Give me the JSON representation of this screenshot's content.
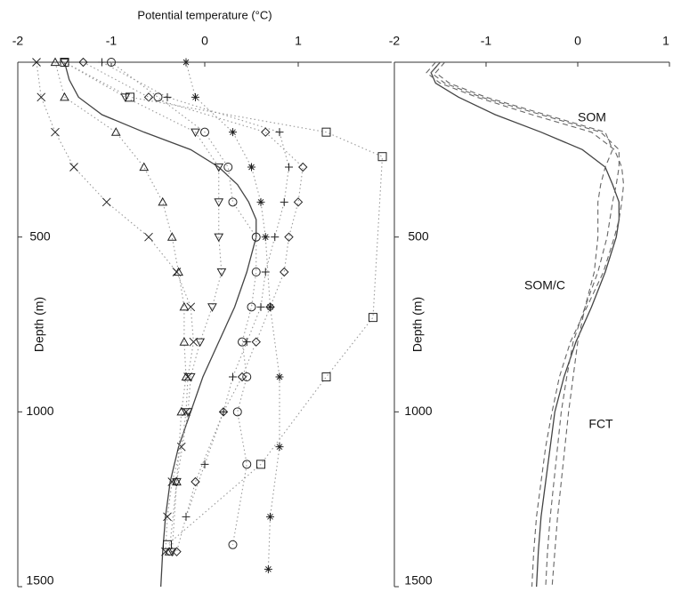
{
  "chart_data": [
    {
      "type": "line",
      "title": "Potential temperature (°C)",
      "ylabel": "Depth (m)",
      "xlim": [
        -2,
        2
      ],
      "xticks": [
        -2,
        -1,
        0,
        1
      ],
      "ylim": [
        0,
        1500
      ],
      "yticks": [
        500,
        1000,
        1500
      ],
      "y_inverted": true,
      "series": [
        {
          "color": "#444444",
          "line_style": "solid",
          "marker": "none",
          "depth": [
            0,
            50,
            100,
            150,
            200,
            250,
            300,
            350,
            400,
            450,
            500,
            600,
            700,
            800,
            900,
            1000,
            1100,
            1200,
            1300,
            1400,
            1500
          ],
          "values": [
            -1.5,
            -1.45,
            -1.35,
            -1.1,
            -0.65,
            -0.15,
            0.15,
            0.35,
            0.47,
            0.55,
            0.55,
            0.45,
            0.32,
            0.15,
            -0.02,
            -0.15,
            -0.28,
            -0.37,
            -0.42,
            -0.45,
            -0.47
          ]
        },
        {
          "color": "#999999",
          "line_style": "dotted",
          "marker": "x",
          "depth": [
            0,
            100,
            200,
            300,
            400,
            500,
            600,
            700,
            800,
            900,
            1000,
            1100,
            1200,
            1300,
            1400
          ],
          "values": [
            -1.8,
            -1.75,
            -1.6,
            -1.4,
            -1.05,
            -0.6,
            -0.3,
            -0.15,
            -0.12,
            -0.18,
            -0.2,
            -0.25,
            -0.35,
            -0.4,
            -0.42
          ]
        },
        {
          "color": "#999999",
          "line_style": "dotted",
          "marker": "triangle",
          "depth": [
            0,
            100,
            200,
            300,
            400,
            500,
            600,
            700,
            800,
            900,
            1000,
            1200,
            1400
          ],
          "values": [
            -1.6,
            -1.5,
            -0.95,
            -0.65,
            -0.45,
            -0.35,
            -0.28,
            -0.22,
            -0.22,
            -0.2,
            -0.25,
            -0.3,
            -0.38
          ]
        },
        {
          "color": "#999999",
          "line_style": "dotted",
          "marker": "itriangle",
          "depth": [
            0,
            100,
            200,
            300,
            400,
            500,
            600,
            700,
            800,
            900,
            1000,
            1200,
            1400
          ],
          "values": [
            -1.5,
            -0.85,
            -0.1,
            0.15,
            0.15,
            0.15,
            0.18,
            0.08,
            -0.05,
            -0.15,
            -0.18,
            -0.3,
            -0.35
          ]
        },
        {
          "color": "#999999",
          "line_style": "dotted",
          "marker": "circle",
          "depth": [
            0,
            100,
            200,
            300,
            400,
            500,
            600,
            700,
            800,
            900,
            1000,
            1150,
            1380
          ],
          "values": [
            -1.0,
            -0.5,
            0.0,
            0.25,
            0.3,
            0.55,
            0.55,
            0.5,
            0.4,
            0.45,
            0.35,
            0.45,
            0.3
          ]
        },
        {
          "color": "#999999",
          "line_style": "dotted",
          "marker": "plus",
          "depth": [
            0,
            100,
            200,
            300,
            400,
            500,
            600,
            700,
            800,
            900,
            1000,
            1150,
            1300
          ],
          "values": [
            -1.1,
            -0.4,
            0.8,
            0.9,
            0.85,
            0.75,
            0.65,
            0.6,
            0.45,
            0.3,
            0.2,
            0.0,
            -0.2
          ]
        },
        {
          "color": "#999999",
          "line_style": "dotted",
          "marker": "diamond",
          "depth": [
            0,
            100,
            200,
            300,
            400,
            500,
            600,
            700,
            800,
            900,
            1000,
            1200,
            1400
          ],
          "values": [
            -1.3,
            -0.6,
            0.65,
            1.05,
            1.0,
            0.9,
            0.85,
            0.7,
            0.55,
            0.4,
            0.2,
            -0.1,
            -0.3
          ]
        },
        {
          "color": "#999999",
          "line_style": "dotted",
          "marker": "square",
          "depth": [
            0,
            100,
            200,
            270,
            730,
            900,
            1150,
            1380
          ],
          "values": [
            -1.5,
            -0.8,
            1.3,
            1.9,
            1.8,
            1.3,
            0.6,
            -0.4
          ]
        },
        {
          "color": "#999999",
          "line_style": "dotted",
          "marker": "star",
          "depth": [
            0,
            100,
            200,
            300,
            400,
            500,
            700,
            900,
            1100,
            1300,
            1450
          ],
          "values": [
            -0.2,
            -0.1,
            0.3,
            0.5,
            0.6,
            0.65,
            0.7,
            0.8,
            0.8,
            0.7,
            0.68
          ]
        }
      ]
    },
    {
      "type": "line",
      "ylabel": "Depth (m)",
      "xlim": [
        -2,
        1
      ],
      "xticks": [
        -2,
        -1,
        0,
        1
      ],
      "ylim": [
        0,
        1500
      ],
      "yticks": [
        500,
        1000,
        1500
      ],
      "y_inverted": true,
      "series": [
        {
          "color": "#444444",
          "line_style": "solid",
          "depth": [
            0,
            30,
            60,
            100,
            150,
            200,
            250,
            300,
            350,
            400,
            450,
            500,
            600,
            700,
            800,
            900,
            1000,
            1100,
            1200,
            1300,
            1400,
            1500
          ],
          "values": [
            -1.5,
            -1.6,
            -1.55,
            -1.3,
            -0.9,
            -0.4,
            0.05,
            0.3,
            0.38,
            0.45,
            0.45,
            0.42,
            0.3,
            0.15,
            -0.02,
            -0.15,
            -0.25,
            -0.3,
            -0.35,
            -0.4,
            -0.43,
            -0.45
          ]
        },
        {
          "color": "#666666",
          "line_style": "dashed",
          "depth": [
            0,
            30,
            60,
            100,
            150,
            200,
            250,
            300,
            350,
            400,
            450,
            500,
            600,
            700,
            800,
            900,
            1000,
            1100,
            1200,
            1300,
            1400,
            1500
          ],
          "values": [
            -1.55,
            -1.65,
            -1.5,
            -1.1,
            -0.5,
            0.15,
            0.4,
            0.48,
            0.5,
            0.48,
            0.45,
            0.4,
            0.28,
            0.1,
            -0.08,
            -0.2,
            -0.28,
            -0.35,
            -0.4,
            -0.45,
            -0.48,
            -0.5
          ]
        },
        {
          "color": "#666666",
          "line_style": "dashed",
          "depth": [
            0,
            30,
            60,
            100,
            150,
            200,
            250,
            300,
            350,
            400,
            450,
            500,
            600,
            700,
            800,
            900,
            1000,
            1100,
            1200,
            1300,
            1400,
            1500
          ],
          "values": [
            -1.5,
            -1.6,
            -1.45,
            -1.05,
            -0.4,
            0.25,
            0.45,
            0.45,
            0.42,
            0.38,
            0.35,
            0.32,
            0.22,
            0.08,
            -0.05,
            -0.12,
            -0.18,
            -0.22,
            -0.26,
            -0.3,
            -0.33,
            -0.35
          ]
        },
        {
          "color": "#666666",
          "line_style": "dashed",
          "depth": [
            0,
            30,
            60,
            100,
            150,
            200,
            250,
            300,
            350,
            400,
            450,
            500,
            600,
            700,
            800,
            900,
            1000,
            1100,
            1200,
            1300,
            1400,
            1500
          ],
          "values": [
            -1.45,
            -1.55,
            -1.4,
            -1.0,
            -0.35,
            0.3,
            0.38,
            0.3,
            0.25,
            0.22,
            0.22,
            0.22,
            0.18,
            0.08,
            0.0,
            -0.05,
            -0.1,
            -0.14,
            -0.18,
            -0.22,
            -0.25,
            -0.28
          ]
        }
      ],
      "annotations": [
        "SOM",
        "SOM/C",
        "FCT"
      ]
    }
  ]
}
